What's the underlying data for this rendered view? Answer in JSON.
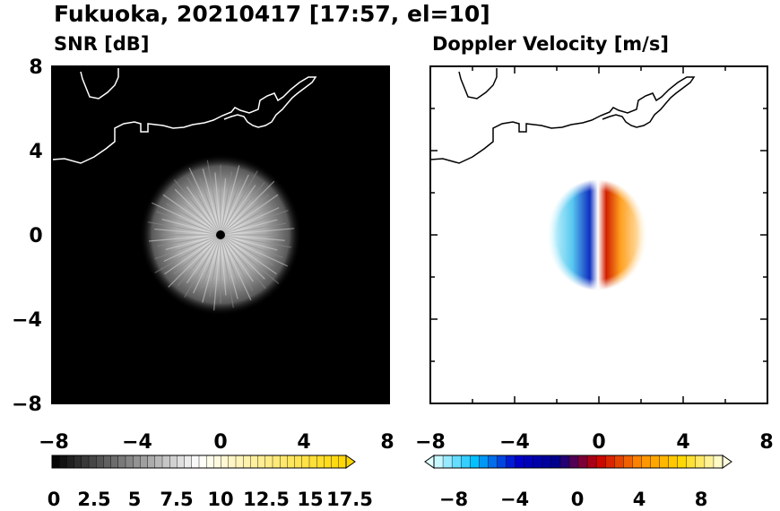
{
  "figure_title": "Fukuoka, 20210417 [17:57, el=10]",
  "chart_data": [
    {
      "type": "heatmap",
      "title": "SNR [dB]",
      "xlabel": "",
      "ylabel": "",
      "xlim": [
        -8,
        8
      ],
      "ylim": [
        -8,
        8
      ],
      "xticks": [
        "−8",
        "−4",
        "0",
        "4",
        "8"
      ],
      "yticks": [
        "8",
        "4",
        "0",
        "−4",
        "−8"
      ],
      "radar_center": [
        0,
        0
      ],
      "echo_radius": 3.6,
      "background_color": "#000000",
      "coastline_color": "#ffffff",
      "colorbar": {
        "min": 0,
        "max": 20,
        "extend": "max",
        "tick_labels": [
          "0",
          "2.5",
          "5",
          "7.5",
          "10",
          "12.5",
          "15",
          "17.5"
        ],
        "colors": [
          "#000000",
          "#ffffff",
          "#ffd700"
        ]
      }
    },
    {
      "type": "heatmap",
      "title": "Doppler Velocity [m/s]",
      "xlabel": "",
      "ylabel": "",
      "xlim": [
        -8,
        8
      ],
      "ylim": [
        -8,
        8
      ],
      "xticks": [
        "−8",
        "−4",
        "0",
        "4",
        "8"
      ],
      "yticks": [
        "8",
        "4",
        "0",
        "−4",
        "−8"
      ],
      "echo_x_range": [
        -2.2,
        2.3
      ],
      "echo_y_range": [
        -2.5,
        2.7
      ],
      "background_color": "#ffffff",
      "coastline_color": "#000000",
      "colorbar": {
        "min": -10,
        "max": 10,
        "extend": "both",
        "tick_labels": [
          "−8",
          "−4",
          "0",
          "4",
          "8"
        ],
        "colors": [
          "#e0ffff",
          "#00bfff",
          "#0000cd",
          "#00008b",
          "#cc0000",
          "#ff8c00",
          "#ffd700",
          "#ffffe0"
        ]
      }
    }
  ]
}
